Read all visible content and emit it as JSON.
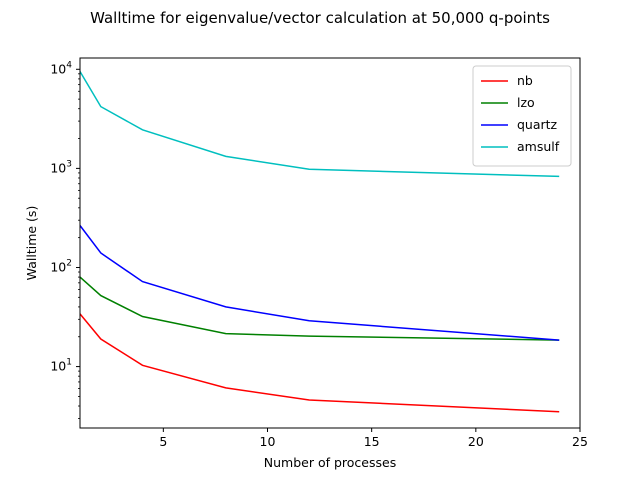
{
  "chart_data": {
    "type": "line",
    "title": "Walltime for eigenvalue/vector calculation at 50,000 q-points",
    "xlabel": "Number of processes",
    "ylabel": "Walltime (s)",
    "xlim": [
      1,
      25
    ],
    "ylim": [
      2.4,
      13000
    ],
    "yscale": "log",
    "grid": false,
    "legend_position": "top-right",
    "x_ticks": [
      5,
      10,
      15,
      20,
      25
    ],
    "y_ticks": [
      {
        "value": 10,
        "label": "10^1"
      },
      {
        "value": 100,
        "label": "10^2"
      },
      {
        "value": 1000,
        "label": "10^3"
      },
      {
        "value": 10000,
        "label": "10^4"
      }
    ],
    "x": [
      1,
      2,
      4,
      8,
      12,
      24
    ],
    "series": [
      {
        "name": "nb",
        "color": "#ff0000",
        "values": [
          34,
          19,
          10.3,
          6.1,
          4.6,
          3.5
        ]
      },
      {
        "name": "lzo",
        "color": "#008000",
        "values": [
          80,
          52,
          32,
          21.5,
          20.3,
          18.5
        ]
      },
      {
        "name": "quartz",
        "color": "#0000ff",
        "values": [
          265,
          140,
          72,
          40,
          29,
          18.5
        ]
      },
      {
        "name": "amsulf",
        "color": "#00bfbf",
        "values": [
          9500,
          4200,
          2450,
          1320,
          980,
          830
        ]
      }
    ]
  }
}
